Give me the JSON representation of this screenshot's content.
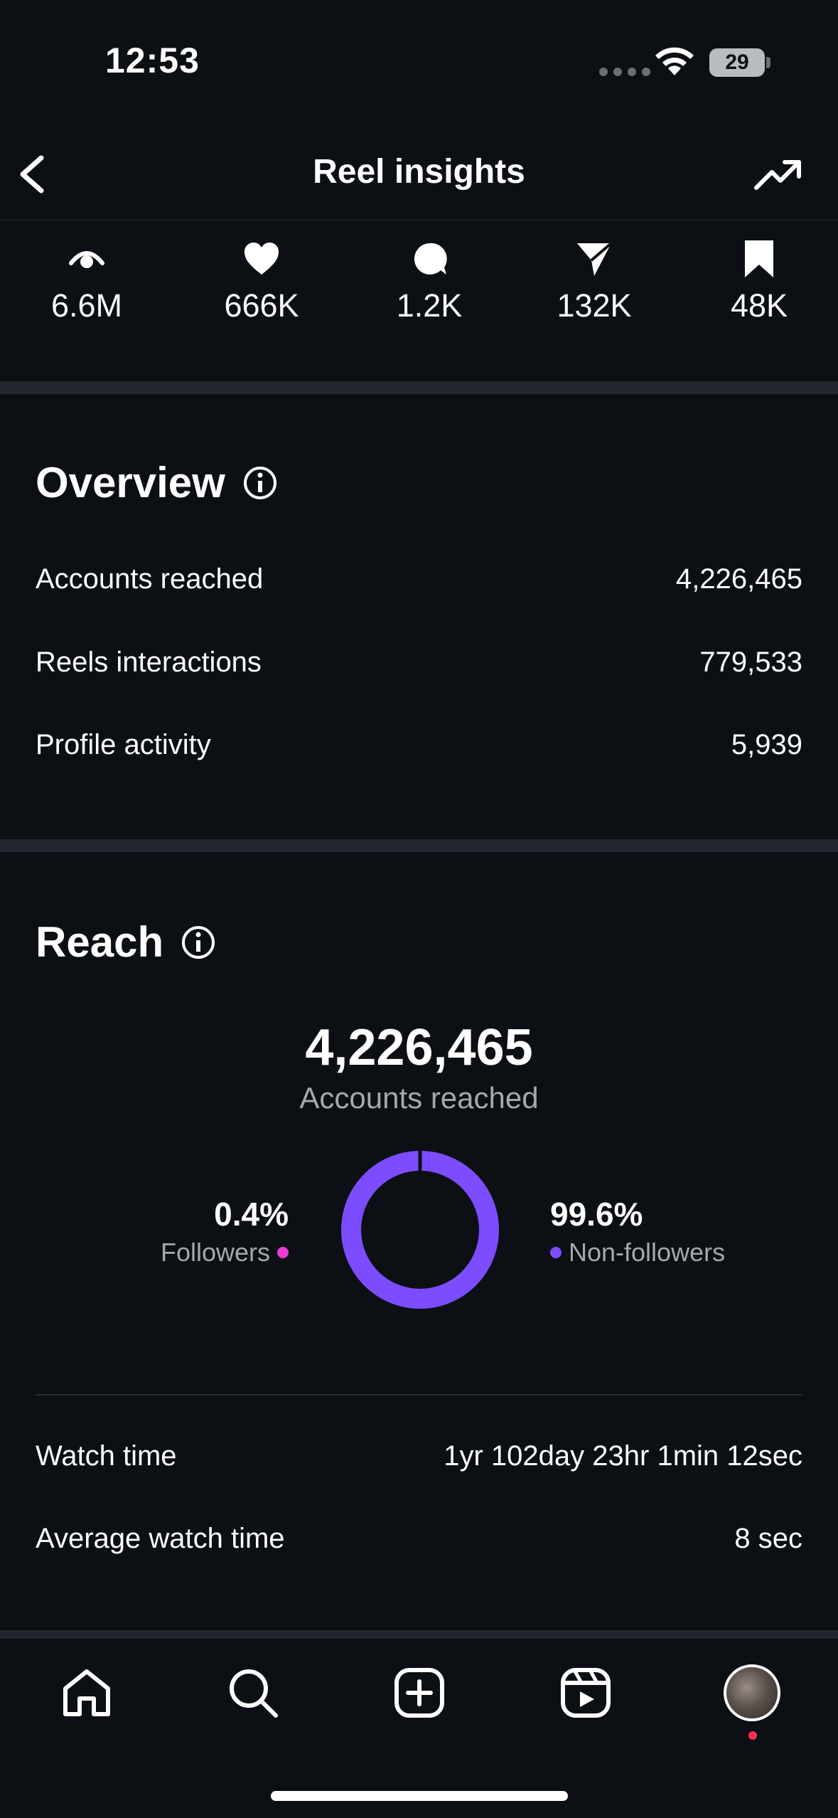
{
  "status_bar": {
    "time": "12:53",
    "battery": "29"
  },
  "header": {
    "title": "Reel insights"
  },
  "stats": [
    {
      "icon": "eye-icon",
      "value": "6.6M"
    },
    {
      "icon": "heart-icon",
      "value": "666K"
    },
    {
      "icon": "comment-icon",
      "value": "1.2K"
    },
    {
      "icon": "share-icon",
      "value": "132K"
    },
    {
      "icon": "bookmark-icon",
      "value": "48K"
    }
  ],
  "overview": {
    "title": "Overview",
    "rows": [
      {
        "label": "Accounts reached",
        "value": "4,226,465"
      },
      {
        "label": "Reels interactions",
        "value": "779,533"
      },
      {
        "label": "Profile activity",
        "value": "5,939"
      }
    ]
  },
  "reach": {
    "title": "Reach",
    "total": "4,226,465",
    "total_label": "Accounts reached",
    "followers": {
      "percent": "0.4%",
      "label": "Followers",
      "color": "#e83cd6",
      "fraction": 0.004
    },
    "non_followers": {
      "percent": "99.6%",
      "label": "Non-followers",
      "color": "#7b4dff",
      "fraction": 0.996
    },
    "rows": [
      {
        "label": "Watch time",
        "value": "1yr 102day 23hr 1min 12sec"
      },
      {
        "label": "Average watch time",
        "value": "8 sec"
      }
    ]
  },
  "nav": {
    "items": [
      "home-icon",
      "search-icon",
      "create-icon",
      "reels-icon",
      "profile-avatar"
    ]
  }
}
